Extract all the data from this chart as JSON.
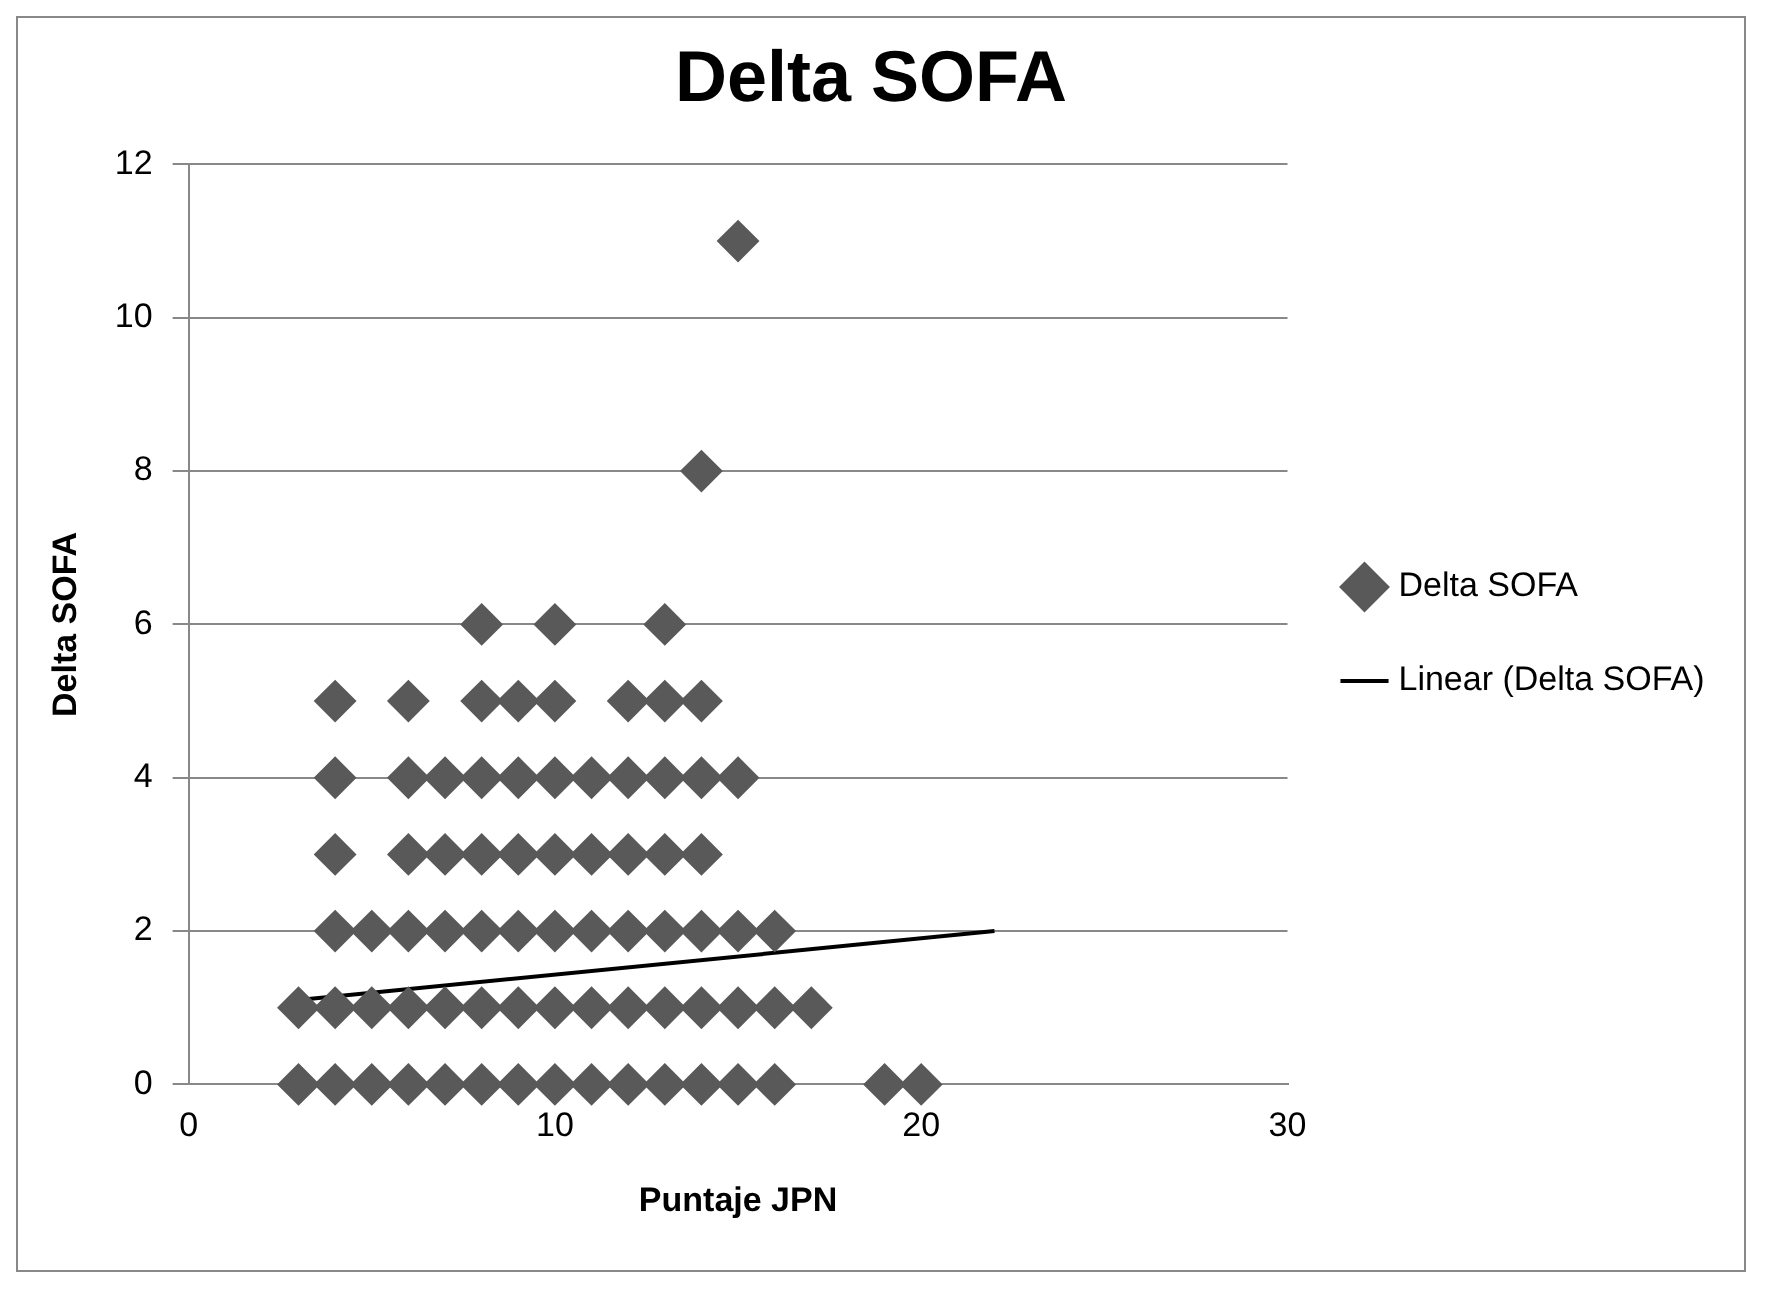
{
  "chart_data": {
    "type": "scatter",
    "title": "Delta SOFA",
    "xlabel": "Puntaje JPN",
    "ylabel": "Delta SOFA",
    "xlim": [
      0,
      30
    ],
    "xticks": [
      0,
      10,
      20,
      30
    ],
    "ylim": [
      0,
      12
    ],
    "yticks": [
      0,
      2,
      4,
      6,
      8,
      10,
      12
    ],
    "grid": "y",
    "legend": "right",
    "marker": "diamond",
    "series": [
      {
        "name": "Delta SOFA",
        "type": "scatter",
        "color": "#595959",
        "x": [
          3,
          4,
          5,
          6,
          7,
          8,
          9,
          10,
          11,
          12,
          13,
          14,
          15,
          16,
          19,
          20,
          3,
          4,
          5,
          6,
          7,
          8,
          9,
          10,
          11,
          12,
          13,
          14,
          15,
          16,
          17,
          4,
          5,
          6,
          7,
          8,
          9,
          10,
          11,
          12,
          13,
          14,
          15,
          16,
          4,
          6,
          7,
          8,
          9,
          10,
          11,
          12,
          13,
          14,
          4,
          6,
          7,
          8,
          9,
          10,
          11,
          12,
          13,
          14,
          15,
          4,
          6,
          8,
          9,
          10,
          12,
          13,
          14,
          8,
          10,
          13,
          14,
          15
        ],
        "values": [
          0,
          0,
          0,
          0,
          0,
          0,
          0,
          0,
          0,
          0,
          0,
          0,
          0,
          0,
          0,
          0,
          1,
          1,
          1,
          1,
          1,
          1,
          1,
          1,
          1,
          1,
          1,
          1,
          1,
          1,
          1,
          2,
          2,
          2,
          2,
          2,
          2,
          2,
          2,
          2,
          2,
          2,
          2,
          2,
          3,
          3,
          3,
          3,
          3,
          3,
          3,
          3,
          3,
          3,
          4,
          4,
          4,
          4,
          4,
          4,
          4,
          4,
          4,
          4,
          4,
          5,
          5,
          5,
          5,
          5,
          5,
          5,
          5,
          6,
          6,
          6,
          8,
          11
        ]
      },
      {
        "name": "Linear (Delta SOFA)",
        "type": "line",
        "color": "#000000",
        "marker": "none",
        "x": [
          3,
          22
        ],
        "values": [
          1.1,
          2.0
        ]
      }
    ]
  }
}
